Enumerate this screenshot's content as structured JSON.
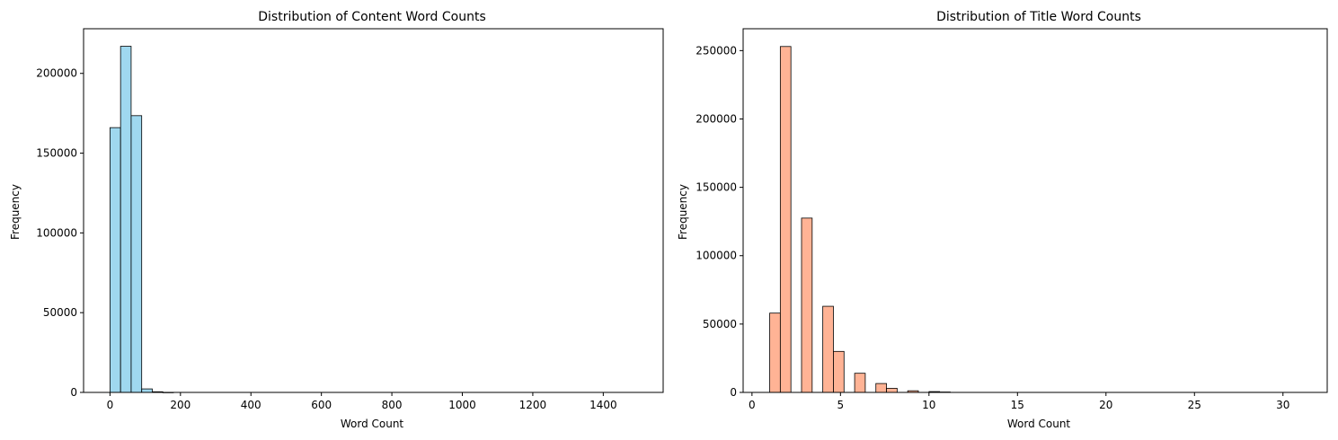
{
  "chart_data": [
    {
      "type": "bar",
      "title": "Distribution of Content Word Counts",
      "xlabel": "Word Count",
      "ylabel": "Frequency",
      "color": "#87ceeb",
      "xlim": [
        -75,
        1570
      ],
      "ylim": [
        0,
        228000
      ],
      "xticks": [
        0,
        200,
        400,
        600,
        800,
        1000,
        1200,
        1400
      ],
      "yticks": [
        0,
        50000,
        100000,
        150000,
        200000
      ],
      "bins": [
        {
          "x0": 0,
          "x1": 30,
          "value": 166000
        },
        {
          "x0": 30,
          "x1": 60,
          "value": 217000
        },
        {
          "x0": 60,
          "x1": 90,
          "value": 173500
        },
        {
          "x0": 90,
          "x1": 120,
          "value": 2200
        },
        {
          "x0": 120,
          "x1": 150,
          "value": 400
        },
        {
          "x0": 150,
          "x1": 180,
          "value": 60
        }
      ]
    },
    {
      "type": "bar",
      "title": "Distribution of Title Word Counts",
      "xlabel": "Word Count",
      "ylabel": "Frequency",
      "color": "#ffa07a",
      "xlim": [
        -0.5,
        32.5
      ],
      "ylim": [
        0,
        266000
      ],
      "xticks": [
        0,
        5,
        10,
        15,
        20,
        25,
        30
      ],
      "yticks": [
        0,
        50000,
        100000,
        150000,
        200000,
        250000
      ],
      "bins": [
        {
          "x0": 1.0,
          "x1": 1.6,
          "value": 58000
        },
        {
          "x0": 1.6,
          "x1": 2.2,
          "value": 253000
        },
        {
          "x0": 2.8,
          "x1": 3.4,
          "value": 127500
        },
        {
          "x0": 4.0,
          "x1": 4.6,
          "value": 63000
        },
        {
          "x0": 4.6,
          "x1": 5.2,
          "value": 30000
        },
        {
          "x0": 5.8,
          "x1": 6.4,
          "value": 14000
        },
        {
          "x0": 7.0,
          "x1": 7.6,
          "value": 6500
        },
        {
          "x0": 7.6,
          "x1": 8.2,
          "value": 3000
        },
        {
          "x0": 8.8,
          "x1": 9.4,
          "value": 1200
        },
        {
          "x0": 10.0,
          "x1": 10.6,
          "value": 600
        },
        {
          "x0": 10.6,
          "x1": 11.2,
          "value": 300
        }
      ]
    }
  ]
}
